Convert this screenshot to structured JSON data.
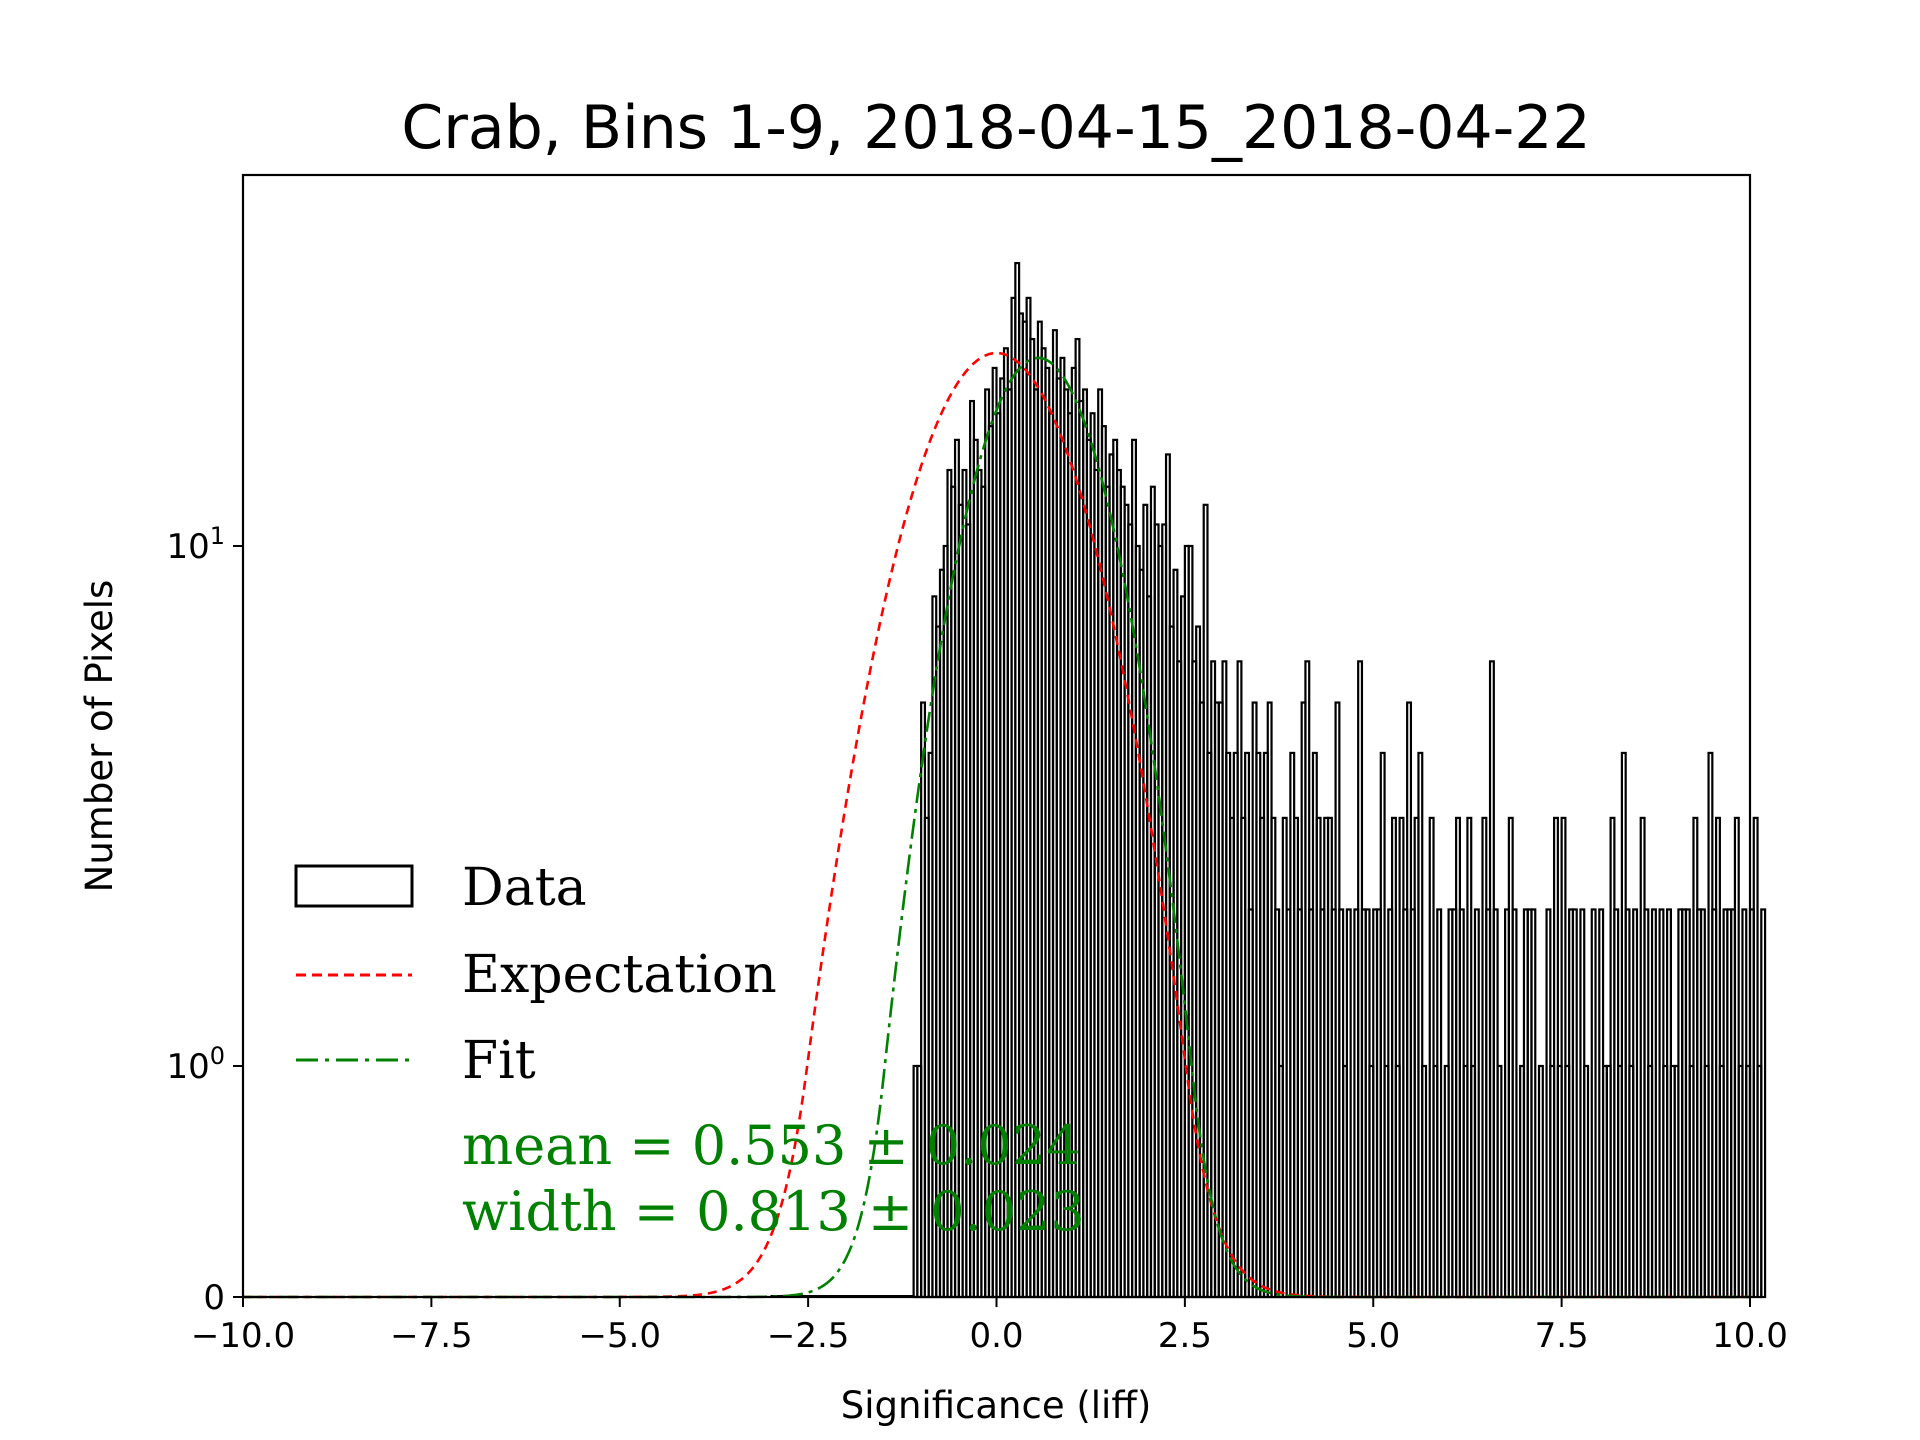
{
  "chart_data": {
    "type": "histogram",
    "title": "Crab, Bins 1-9, 2018-04-15_2018-04-22",
    "xlabel": "Significance (liff)",
    "ylabel": "Number of Pixels",
    "xlim": [
      -10.0,
      10.0
    ],
    "y_scale": "symlog",
    "x_ticks": [
      "−10.0",
      "−7.5",
      "−5.0",
      "−2.5",
      "0.0",
      "2.5",
      "5.0",
      "7.5",
      "10.0"
    ],
    "x_tick_values": [
      -10,
      -7.5,
      -5,
      -2.5,
      0,
      2.5,
      5,
      7.5,
      10
    ],
    "y_ticks": [
      {
        "value": 0,
        "base": "0",
        "exp": ""
      },
      {
        "value": 1,
        "base": "10",
        "exp": "0"
      },
      {
        "value": 10,
        "base": "10",
        "exp": "1"
      }
    ],
    "legend": {
      "placement": "lower-left",
      "entries": [
        {
          "label": "Data",
          "style": "step",
          "color": "#000000"
        },
        {
          "label": "Expectation",
          "style": "dashed",
          "color": "#ff0000"
        },
        {
          "label": "Fit",
          "style": "dashdot",
          "color": "#008000"
        }
      ]
    },
    "annotations": {
      "mean_text": "mean = 0.553 ± 0.024",
      "width_text": "width = 0.813 ± 0.023",
      "color": "#008000"
    },
    "expectation": {
      "mean": 0.0,
      "sigma": 1.0,
      "peak": 23.5
    },
    "fit": {
      "mean": 0.553,
      "sigma": 0.813,
      "peak": 23.0
    },
    "histogram": {
      "bin_edges_start": -1.1,
      "bin_width": 0.05,
      "counts": [
        1,
        1,
        5,
        3,
        4,
        8,
        7,
        9,
        10,
        14,
        13,
        16,
        12,
        14,
        11,
        19,
        16,
        14,
        13,
        20,
        17,
        22,
        18,
        21,
        24,
        20,
        30,
        35,
        28,
        27,
        30,
        25,
        20,
        27,
        24,
        22,
        18,
        26,
        21,
        23,
        20,
        18,
        22,
        25,
        19,
        20,
        16,
        18,
        14,
        20,
        17,
        13,
        15,
        16,
        14,
        13,
        12,
        11,
        16,
        10,
        9,
        12,
        8,
        13,
        11,
        10,
        11,
        15,
        7,
        9,
        6,
        8,
        10,
        10,
        6,
        7,
        5,
        12,
        4,
        6,
        5,
        5,
        6,
        4,
        3,
        4,
        6,
        3,
        4,
        2,
        5,
        4,
        3,
        4,
        5,
        3,
        2,
        1,
        3,
        2,
        4,
        3,
        2,
        5,
        6,
        2,
        4,
        3,
        2,
        3,
        3,
        2,
        5,
        2,
        1,
        2,
        0,
        2,
        6,
        2,
        2,
        1,
        2,
        2,
        4,
        1,
        2,
        3,
        1,
        3,
        2,
        5,
        2,
        3,
        4,
        1,
        0,
        3,
        1,
        2,
        0,
        1,
        2,
        2,
        3,
        2,
        1,
        3,
        1,
        2,
        0,
        3,
        2,
        6,
        2,
        1,
        0,
        2,
        3,
        2,
        0,
        1,
        2,
        2,
        2,
        0,
        1,
        0,
        2,
        1,
        3,
        1,
        3,
        1,
        2,
        2,
        0,
        2,
        1,
        0,
        2,
        0,
        2,
        1,
        1,
        3,
        2,
        1,
        4,
        2,
        1,
        2,
        0,
        3,
        2,
        1,
        2,
        0,
        2,
        1,
        2,
        1,
        1,
        2,
        2,
        2,
        1,
        3,
        2,
        2,
        1,
        4,
        2,
        3,
        1,
        2,
        2,
        2,
        3,
        1,
        2,
        1,
        2,
        3,
        1,
        2
      ]
    }
  }
}
